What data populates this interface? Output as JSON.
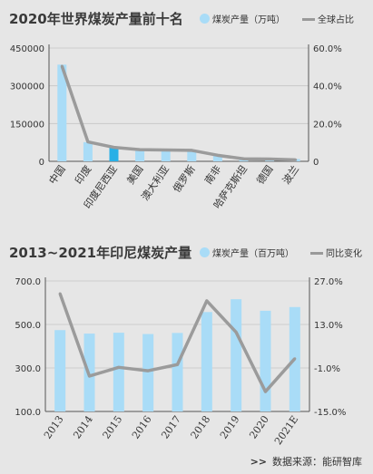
{
  "chart_data": [
    {
      "type": "bar",
      "title": "2020年世界煤炭产量前十名",
      "legend": {
        "bar": "煤炭产量（万吨）",
        "line": "全球占比"
      },
      "categories": [
        "中国",
        "印度",
        "印度尼西亚",
        "美国",
        "澳大利亚",
        "俄罗斯",
        "南非",
        "哈萨克斯坦",
        "德国",
        "波兰"
      ],
      "series": [
        {
          "name": "煤炭产量（万吨）",
          "type": "bar",
          "axis": "left",
          "values": [
            384000,
            76000,
            56000,
            48000,
            47000,
            40000,
            25000,
            11000,
            10000,
            9000
          ]
        },
        {
          "name": "全球占比",
          "type": "line",
          "axis": "right",
          "values": [
            50.4,
            10.3,
            7.4,
            6.2,
            6.0,
            5.8,
            3.2,
            1.3,
            1.2,
            0.8
          ]
        }
      ],
      "yticks_left": [
        "0",
        "150000",
        "300000",
        "450000"
      ],
      "ylim_left": [
        0,
        450000
      ],
      "yticks_right": [
        "0",
        "20.0%",
        "40.0%",
        "60.0%"
      ],
      "ylim_right": [
        0,
        60
      ],
      "highlight_index": 2,
      "colors": {
        "bar": "#a9dcf7",
        "highlight": "#29b0e6",
        "line": "#9b9b9b"
      }
    },
    {
      "type": "bar",
      "title": "2013~2021年印尼煤炭产量",
      "legend": {
        "bar": "煤炭产量（百万吨）",
        "line": "同比变化"
      },
      "categories": [
        "2013",
        "2014",
        "2015",
        "2016",
        "2017",
        "2018",
        "2019",
        "2020",
        "2021E"
      ],
      "series": [
        {
          "name": "煤炭产量（百万吨）",
          "type": "bar",
          "axis": "left",
          "values": [
            474,
            458,
            462,
            456,
            461,
            557,
            616,
            563,
            580
          ]
        },
        {
          "name": "同比变化",
          "type": "line",
          "axis": "right",
          "values": [
            22.9,
            -3.6,
            -0.8,
            -1.9,
            0.1,
            20.6,
            10.5,
            -8.6,
            2.0
          ]
        }
      ],
      "yticks_left": [
        "100.0",
        "300.0",
        "500.0",
        "700.0"
      ],
      "ylim_left": [
        100,
        700
      ],
      "yticks_right": [
        "-15.0%",
        "-1.0%",
        "13.0%",
        "27.0%"
      ],
      "ylim_right": [
        -15,
        27
      ],
      "colors": {
        "bar": "#a9dcf7",
        "line": "#9b9b9b"
      }
    }
  ],
  "source": {
    "arrow": ">>",
    "text": "数据来源：能研智库"
  }
}
